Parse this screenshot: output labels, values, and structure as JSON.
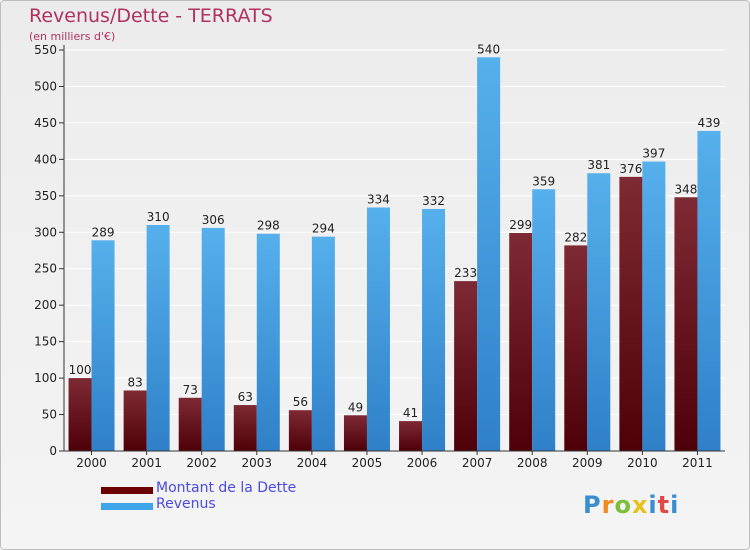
{
  "title": "Revenus/Dette - TERRATS",
  "subtitle": "(en milliers d'€)",
  "logo": {
    "text": "Proxiti",
    "colors": [
      "#3a8ed0",
      "#f08a1c",
      "#7cbf3a",
      "#e8c21a",
      "#3a8ed0",
      "#e04848",
      "#3a8ed0"
    ]
  },
  "colors": {
    "dette": "#7a0f1e",
    "revenus": "#3ea6e8",
    "title": "#b03060",
    "legend_text": "#4a4adf"
  },
  "chart_data": {
    "type": "bar",
    "categories": [
      "2000",
      "2001",
      "2002",
      "2003",
      "2004",
      "2005",
      "2006",
      "2007",
      "2008",
      "2009",
      "2010",
      "2011"
    ],
    "series": [
      {
        "name": "Montant de la Dette",
        "values": [
          100,
          83,
          73,
          63,
          56,
          49,
          41,
          233,
          299,
          282,
          376,
          348
        ]
      },
      {
        "name": "Revenus",
        "values": [
          289,
          310,
          306,
          298,
          294,
          334,
          332,
          540,
          359,
          381,
          397,
          439
        ]
      }
    ],
    "ylim": [
      0,
      550
    ],
    "yticks": [
      0,
      50,
      100,
      150,
      200,
      250,
      300,
      350,
      400,
      450,
      500,
      550
    ],
    "grid": true,
    "legend_position": "bottom-left"
  }
}
